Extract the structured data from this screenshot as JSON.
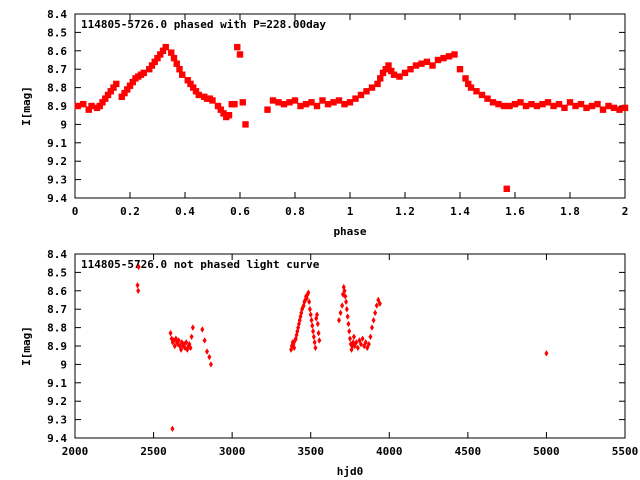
{
  "chart_data": [
    {
      "type": "scatter",
      "title": "114805-5726.0 phased with P=228.00day",
      "xlabel": "phase",
      "ylabel": "I[mag]",
      "xlim": [
        0,
        2
      ],
      "ylim": [
        8.4,
        9.4
      ],
      "y_inverted": true,
      "x_ticks": [
        "0",
        "0.2",
        "0.4",
        "0.6",
        "0.8",
        "1",
        "1.2",
        "1.4",
        "1.6",
        "1.8",
        "2"
      ],
      "y_ticks": [
        "8.4",
        "8.5",
        "8.6",
        "8.7",
        "8.8",
        "8.9",
        "9",
        "9.1",
        "9.2",
        "9.3",
        "9.4"
      ],
      "marker_color": "#ff0000",
      "series": [
        {
          "x": [
            0.01,
            0.03,
            0.05,
            0.06,
            0.08,
            0.09,
            0.1,
            0.11,
            0.12,
            0.13,
            0.14,
            0.15,
            0.17,
            0.18,
            0.19,
            0.2,
            0.21,
            0.22,
            0.23,
            0.24,
            0.25,
            0.27,
            0.28,
            0.29,
            0.3,
            0.31,
            0.32,
            0.33,
            0.35,
            0.36,
            0.37,
            0.38,
            0.39,
            0.41,
            0.42,
            0.43,
            0.44,
            0.45,
            0.47,
            0.48,
            0.49,
            0.5,
            0.52,
            0.53,
            0.54,
            0.55,
            0.56,
            0.57,
            0.58,
            0.59,
            0.6,
            0.61,
            0.62,
            0.7,
            0.72,
            0.74,
            0.76,
            0.78,
            0.8,
            0.82,
            0.84,
            0.86,
            0.88,
            0.9,
            0.92,
            0.94,
            0.96,
            0.98,
            1.0,
            1.02,
            1.04,
            1.06,
            1.08,
            1.1,
            1.11,
            1.12,
            1.13,
            1.14,
            1.15,
            1.16,
            1.18,
            1.2,
            1.22,
            1.24,
            1.26,
            1.28,
            1.3,
            1.32,
            1.34,
            1.36,
            1.38,
            1.4,
            1.42,
            1.43,
            1.44,
            1.46,
            1.48,
            1.5,
            1.52,
            1.54,
            1.56,
            1.57,
            1.58,
            1.6,
            1.62,
            1.64,
            1.66,
            1.68,
            1.7,
            1.72,
            1.74,
            1.76,
            1.78,
            1.8,
            1.82,
            1.84,
            1.86,
            1.88,
            1.9,
            1.92,
            1.94,
            1.96,
            1.98,
            2.0
          ],
          "y": [
            8.9,
            8.89,
            8.92,
            8.9,
            8.91,
            8.9,
            8.88,
            8.86,
            8.84,
            8.82,
            8.8,
            8.78,
            8.85,
            8.83,
            8.81,
            8.79,
            8.77,
            8.75,
            8.74,
            8.73,
            8.72,
            8.7,
            8.68,
            8.66,
            8.64,
            8.62,
            8.6,
            8.58,
            8.61,
            8.64,
            8.67,
            8.7,
            8.73,
            8.76,
            8.78,
            8.8,
            8.82,
            8.84,
            8.85,
            8.86,
            8.86,
            8.87,
            8.9,
            8.92,
            8.94,
            8.96,
            8.95,
            8.89,
            8.89,
            8.58,
            8.62,
            8.88,
            9.0,
            8.92,
            8.87,
            8.88,
            8.89,
            8.88,
            8.87,
            8.9,
            8.89,
            8.88,
            8.9,
            8.87,
            8.89,
            8.88,
            8.87,
            8.89,
            8.88,
            8.86,
            8.84,
            8.82,
            8.8,
            8.78,
            8.75,
            8.72,
            8.7,
            8.68,
            8.71,
            8.73,
            8.74,
            8.72,
            8.7,
            8.68,
            8.67,
            8.66,
            8.68,
            8.65,
            8.64,
            8.63,
            8.62,
            8.7,
            8.75,
            8.78,
            8.8,
            8.82,
            8.84,
            8.86,
            8.88,
            8.89,
            8.9,
            9.35,
            8.9,
            8.89,
            8.88,
            8.9,
            8.89,
            8.9,
            8.89,
            8.88,
            8.9,
            8.89,
            8.91,
            8.88,
            8.9,
            8.89,
            8.91,
            8.9,
            8.89,
            8.92,
            8.9,
            8.91,
            8.92,
            8.91
          ]
        }
      ]
    },
    {
      "type": "scatter",
      "title": "114805-5726.0 not phased light curve",
      "xlabel": "hjd0",
      "ylabel": "I[mag]",
      "xlim": [
        2000,
        5500
      ],
      "ylim": [
        8.4,
        9.4
      ],
      "y_inverted": true,
      "x_ticks": [
        "2000",
        "2500",
        "3000",
        "3500",
        "4000",
        "4500",
        "5000",
        "5500"
      ],
      "y_ticks": [
        "8.4",
        "8.5",
        "8.6",
        "8.7",
        "8.8",
        "8.9",
        "9",
        "9.1",
        "9.2",
        "9.3",
        "9.4"
      ],
      "marker_color": "#ff0000",
      "series": [
        {
          "x": [
            2398,
            2402,
            2405,
            2608,
            2615,
            2622,
            2628,
            2635,
            2642,
            2648,
            2655,
            2660,
            2668,
            2675,
            2680,
            2688,
            2695,
            2700,
            2708,
            2715,
            2722,
            2728,
            2735,
            2742,
            2750,
            2810,
            2825,
            2840,
            2855,
            2865,
            2620,
            3375,
            3380,
            3385,
            3390,
            3395,
            3400,
            3405,
            3410,
            3415,
            3420,
            3425,
            3430,
            3435,
            3440,
            3445,
            3450,
            3455,
            3460,
            3465,
            3470,
            3475,
            3480,
            3485,
            3490,
            3495,
            3500,
            3505,
            3510,
            3515,
            3520,
            3525,
            3530,
            3535,
            3540,
            3545,
            3550,
            3555,
            3680,
            3690,
            3700,
            3705,
            3710,
            3715,
            3720,
            3725,
            3730,
            3735,
            3740,
            3745,
            3750,
            3755,
            3760,
            3765,
            3770,
            3775,
            3780,
            3790,
            3800,
            3810,
            3820,
            3830,
            3840,
            3850,
            3860,
            3870,
            3880,
            3890,
            3900,
            3910,
            3920,
            3930,
            3940,
            5000
          ],
          "y": [
            8.57,
            8.6,
            8.47,
            8.83,
            8.86,
            8.88,
            8.87,
            8.9,
            8.86,
            8.88,
            8.89,
            8.87,
            8.9,
            8.92,
            8.88,
            8.9,
            8.89,
            8.91,
            8.88,
            8.92,
            8.9,
            8.89,
            8.91,
            8.85,
            8.8,
            8.81,
            8.87,
            8.93,
            8.96,
            9.0,
            9.35,
            8.92,
            8.9,
            8.88,
            8.89,
            8.91,
            8.87,
            8.86,
            8.84,
            8.82,
            8.8,
            8.78,
            8.76,
            8.74,
            8.72,
            8.7,
            8.69,
            8.68,
            8.66,
            8.65,
            8.63,
            8.64,
            8.62,
            8.61,
            8.66,
            8.7,
            8.73,
            8.76,
            8.79,
            8.82,
            8.85,
            8.88,
            8.91,
            8.75,
            8.73,
            8.78,
            8.83,
            8.87,
            8.76,
            8.72,
            8.68,
            8.62,
            8.58,
            8.6,
            8.63,
            8.66,
            8.7,
            8.74,
            8.78,
            8.82,
            8.86,
            8.89,
            8.92,
            8.9,
            8.88,
            8.85,
            8.9,
            8.88,
            8.91,
            8.87,
            8.89,
            8.86,
            8.9,
            8.88,
            8.91,
            8.89,
            8.85,
            8.8,
            8.76,
            8.72,
            8.68,
            8.65,
            8.67,
            8.94
          ]
        }
      ]
    }
  ]
}
